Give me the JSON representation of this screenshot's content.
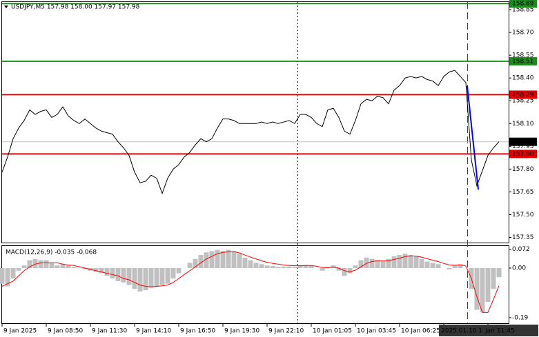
{
  "chart_data": [
    {
      "type": "line",
      "title": "USDJPY,M5 157.98 158.00 157.97 157.98",
      "categories": [
        "9 Jan 2025",
        null,
        null,
        null,
        null,
        null,
        null,
        null,
        "9 Jan 08:50",
        null,
        null,
        null,
        null,
        null,
        null,
        null,
        "9 Jan 11:30",
        null,
        null,
        null,
        null,
        null,
        null,
        null,
        "9 Jan 14:10",
        null,
        null,
        null,
        null,
        null,
        null,
        null,
        "9 Jan 16:50",
        null,
        null,
        null,
        null,
        null,
        null,
        null,
        "9 Jan 19:30",
        null,
        null,
        null,
        null,
        null,
        null,
        null,
        "9 Jan 22:10",
        null,
        null,
        null,
        null,
        null,
        null,
        null,
        "10 Jan 01:05",
        null,
        null,
        null,
        null,
        null,
        null,
        null,
        "10 Jan 03:45",
        null,
        null,
        null,
        null,
        null,
        null,
        null,
        "10 Jan 06:25",
        null,
        null,
        null,
        null,
        null,
        null,
        null,
        "2025.01.10 10:30",
        null,
        null,
        null,
        null,
        null,
        null,
        null,
        "Jan 11:45",
        null,
        null
      ],
      "values": [
        157.78,
        157.88,
        158.0,
        158.07,
        158.12,
        158.19,
        158.16,
        158.18,
        158.19,
        158.14,
        158.16,
        158.21,
        158.15,
        158.12,
        158.1,
        158.13,
        158.1,
        158.07,
        158.05,
        158.04,
        158.03,
        157.98,
        157.94,
        157.89,
        157.78,
        157.71,
        157.72,
        157.76,
        157.74,
        157.64,
        157.74,
        157.8,
        157.83,
        157.88,
        157.91,
        157.96,
        158.0,
        157.98,
        158.0,
        158.07,
        158.13,
        158.13,
        158.12,
        158.1,
        158.1,
        158.1,
        158.1,
        158.11,
        158.1,
        158.11,
        158.1,
        158.11,
        158.12,
        158.1,
        158.16,
        158.16,
        158.14,
        158.1,
        158.08,
        158.19,
        158.2,
        158.14,
        158.05,
        158.03,
        158.12,
        158.23,
        158.26,
        158.25,
        158.28,
        158.27,
        158.23,
        158.32,
        158.35,
        158.4,
        158.41,
        158.4,
        158.41,
        158.39,
        158.38,
        158.35,
        158.41,
        158.44,
        158.45,
        158.41,
        158.37,
        157.86,
        157.69,
        157.79,
        157.89,
        157.94,
        157.98
      ],
      "color": "#000000",
      "ylim": [
        157.316,
        158.9
      ],
      "yticks": [
        158.85,
        {
          "value": 158.7,
          "label": "158.70"
        },
        158.55,
        {
          "value": 158.4,
          "label": "158.40"
        },
        158.25,
        {
          "value": 158.1,
          "label": "158.10"
        },
        157.95,
        {
          "value": 157.8,
          "label": "157.80"
        },
        157.65,
        {
          "value": 157.5,
          "label": "157.50"
        },
        157.35
      ],
      "levels": [
        {
          "value": 158.89,
          "color": "#1f8a1f",
          "label_color": "#1f8a1f"
        },
        {
          "value": 158.51,
          "color": "#1f8a1f",
          "label_color": "#1f8a1f"
        },
        {
          "value": 158.29,
          "color": "#e00000",
          "label_color": "#e00000"
        },
        {
          "value": 157.98,
          "color": "#c0c0c0",
          "label_color": "#000000"
        },
        {
          "value": {
            "value": 157.9,
            "label": "157.90"
          },
          "color": "#e00000",
          "label_color": "#e00000"
        }
      ]
    },
    {
      "type": "macd",
      "title": "MACD(12,26,9) -0.035 -0.068",
      "histogram": {
        "color": "#c0c0c0",
        "values": [
          -0.06,
          -0.07,
          -0.04,
          -0.01,
          0.01,
          0.03,
          0.035,
          0.03,
          0.03,
          0.02,
          0.01,
          0.015,
          0.01,
          0.005,
          0.0,
          -0.005,
          -0.01,
          -0.015,
          -0.02,
          -0.03,
          -0.04,
          -0.05,
          -0.055,
          -0.065,
          -0.08,
          -0.09,
          -0.085,
          -0.075,
          -0.07,
          -0.065,
          -0.06,
          -0.04,
          -0.02,
          0.0,
          0.02,
          0.035,
          0.05,
          0.06,
          0.065,
          0.07,
          0.065,
          0.07,
          0.065,
          0.055,
          0.04,
          0.03,
          0.02,
          0.015,
          0.01,
          0.008,
          0.005,
          0.005,
          0.006,
          0.005,
          0.01,
          0.012,
          0.01,
          0.0,
          -0.01,
          0.005,
          0.01,
          -0.01,
          -0.03,
          -0.02,
          0.01,
          0.03,
          0.04,
          0.035,
          0.03,
          0.025,
          0.035,
          0.045,
          0.05,
          0.055,
          0.05,
          0.045,
          0.035,
          0.025,
          0.02,
          0.015,
          0.0,
          -0.005,
          0.01,
          0.015,
          0.0,
          -0.08,
          -0.16,
          -0.17,
          -0.13,
          -0.08,
          -0.035
        ]
      },
      "signal": {
        "color": "#ff0000",
        "values": [
          -0.07,
          -0.06,
          -0.05,
          -0.03,
          -0.01,
          0.005,
          0.015,
          0.02,
          0.02,
          0.02,
          0.02,
          0.015,
          0.012,
          0.01,
          0.005,
          0.0,
          -0.005,
          -0.01,
          -0.015,
          -0.02,
          -0.025,
          -0.03,
          -0.04,
          -0.045,
          -0.055,
          -0.065,
          -0.07,
          -0.072,
          -0.07,
          -0.068,
          -0.065,
          -0.055,
          -0.04,
          -0.025,
          -0.01,
          0.005,
          0.02,
          0.035,
          0.045,
          0.055,
          0.06,
          0.062,
          0.063,
          0.058,
          0.05,
          0.042,
          0.035,
          0.028,
          0.022,
          0.018,
          0.015,
          0.012,
          0.01,
          0.009,
          0.009,
          0.01,
          0.01,
          0.007,
          0.002,
          0.002,
          0.004,
          0.0,
          -0.01,
          -0.015,
          -0.008,
          0.005,
          0.018,
          0.025,
          0.028,
          0.027,
          0.028,
          0.033,
          0.038,
          0.044,
          0.047,
          0.046,
          0.042,
          0.036,
          0.03,
          0.025,
          0.018,
          0.012,
          0.011,
          0.012,
          0.008,
          -0.04,
          -0.11,
          -0.17,
          -0.17,
          -0.12,
          -0.068
        ]
      },
      "ylim": [
        -0.214,
        0.0845
      ],
      "yticks": [
        0.072,
        {
          "value": 0,
          "label": "0.00"
        },
        -0.19
      ]
    }
  ]
}
